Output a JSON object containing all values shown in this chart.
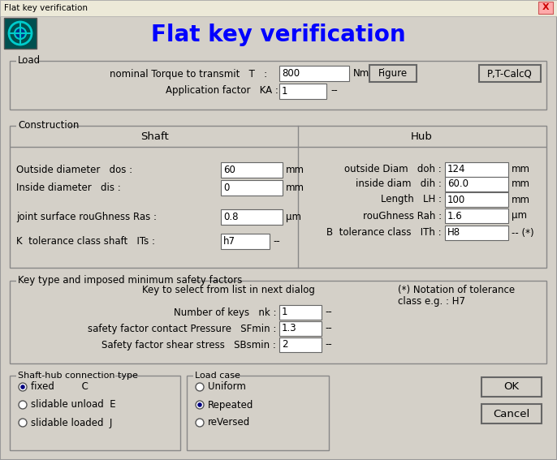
{
  "title": "Flat key verification",
  "window_title": "Flat key verification",
  "bg_color": "#d4d0c8",
  "input_bg": "#ffffff",
  "text_color": "#000000",
  "title_color": "#0000ff",
  "border_color": "#808080",
  "close_color": "#ffaaaa",
  "sections": {
    "Load": {
      "torque_value": "800",
      "appfactor_value": "1"
    },
    "Construction": {
      "shaft_rows": [
        [
          "Outside diameter   dos :",
          "60",
          "mm"
        ],
        [
          "Inside diameter   dis :",
          "0",
          "mm"
        ],
        [
          "joint surface rouGhness Ras :",
          "0.8",
          "μm"
        ],
        [
          "K  tolerance class shaft   ITs :",
          "h7",
          "--"
        ]
      ],
      "hub_rows": [
        [
          "outside Diam   doh :",
          "124",
          "mm"
        ],
        [
          "inside diam   dih :",
          "60.0",
          "mm"
        ],
        [
          "Length   LH :",
          "100",
          "mm"
        ],
        [
          "rouGhness Rah :",
          "1.6",
          "μm"
        ],
        [
          "B  tolerance class   ITh :",
          "H8",
          "-- (*)"
        ]
      ]
    },
    "Key": {
      "key_note": "Key to select from list in next dialog",
      "tolerance_note1": "(*) Notation of tolerance",
      "tolerance_note2": "class e.g. : H7",
      "rows": [
        [
          "Number of keys   nk :",
          "1",
          "--"
        ],
        [
          "safety factor contact Pressure   SFmin :",
          "1.3",
          "--"
        ],
        [
          "Safety factor shear stress   SBsmin :",
          "2",
          "--"
        ]
      ]
    },
    "ShaftHub": {
      "label": "Shaft-hub connection type",
      "options": [
        "fixed         C",
        "slidable unload  E",
        "slidable loaded  J"
      ],
      "selected": 0
    },
    "LoadCase": {
      "label": "Load case",
      "options": [
        "Uniform",
        "Repeated",
        "reVersed"
      ],
      "selected": 1
    }
  }
}
